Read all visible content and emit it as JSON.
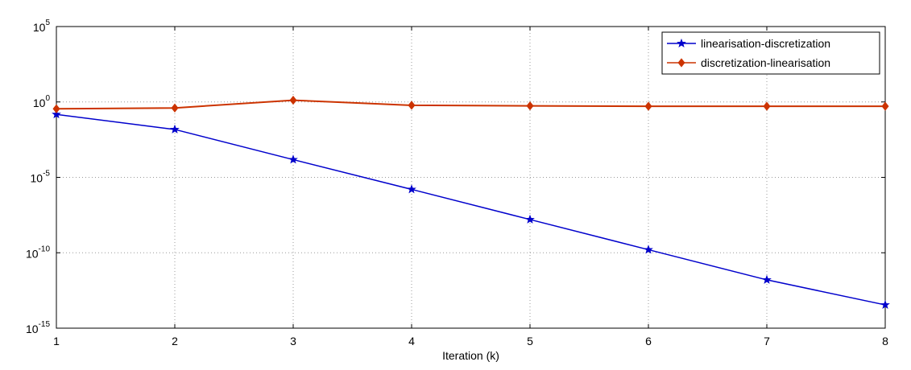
{
  "chart_data": {
    "type": "line",
    "title": "",
    "xlabel": "Iteration (k)",
    "ylabel": "",
    "x": [
      1,
      2,
      3,
      4,
      5,
      6,
      7,
      8
    ],
    "xlim": [
      1,
      8
    ],
    "ylim": [
      1e-15,
      100000.0
    ],
    "yscale": "log",
    "xticks": [
      "1",
      "2",
      "3",
      "4",
      "5",
      "6",
      "7",
      "8"
    ],
    "yticks": [
      {
        "base": "10",
        "exp": "5"
      },
      {
        "base": "10",
        "exp": "0"
      },
      {
        "base": "10",
        "exp": "-5"
      },
      {
        "base": "10",
        "exp": "-10"
      },
      {
        "base": "10",
        "exp": "-15"
      }
    ],
    "grid": true,
    "legend_position": "top-right",
    "series": [
      {
        "name": "linearisation-discretization",
        "color": "#0000cc",
        "marker": "star",
        "values": [
          0.15,
          0.015,
          0.00015,
          1.6e-06,
          1.6e-08,
          1.6e-10,
          1.6e-12,
          3.5e-14
        ]
      },
      {
        "name": "discretization-linearisation",
        "color": "#cc3300",
        "marker": "diamond",
        "values": [
          0.35,
          0.4,
          1.3,
          0.6,
          0.55,
          0.52,
          0.52,
          0.52
        ]
      }
    ]
  }
}
